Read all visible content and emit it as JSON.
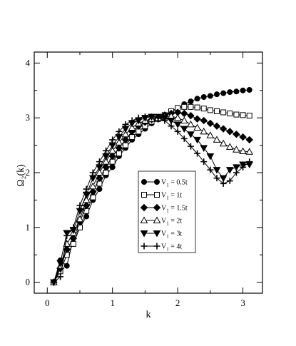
{
  "chart_data": {
    "type": "line",
    "xlabel": "k",
    "ylabel": "Ω₂(k)",
    "xlim": [
      -0.2,
      3.3
    ],
    "ylim": [
      -0.2,
      4.2
    ],
    "xticks": [
      0,
      1,
      2,
      3
    ],
    "yticks": [
      0,
      1,
      2,
      3,
      4
    ],
    "legend_position": "center-right",
    "series": [
      {
        "name_base": "V",
        "name_sub": "1",
        "name_value": " = 0.5t",
        "marker": "circle-filled",
        "x": [
          0.1,
          0.2,
          0.3,
          0.4,
          0.5,
          0.6,
          0.7,
          0.8,
          0.9,
          1.0,
          1.1,
          1.2,
          1.3,
          1.4,
          1.5,
          1.6,
          1.7,
          1.8,
          1.9,
          2.0,
          2.1,
          2.2,
          2.3,
          2.4,
          2.5,
          2.6,
          2.7,
          2.8,
          2.9,
          3.0,
          3.1
        ],
        "y": [
          0.0,
          0.4,
          0.3,
          0.8,
          1.0,
          1.2,
          1.5,
          1.7,
          1.95,
          2.1,
          2.3,
          2.45,
          2.6,
          2.7,
          2.8,
          2.9,
          2.97,
          3.03,
          3.1,
          3.17,
          3.25,
          3.3,
          3.35,
          3.38,
          3.4,
          3.43,
          3.45,
          3.47,
          3.48,
          3.5,
          3.51
        ]
      },
      {
        "name_base": "V",
        "name_sub": "1",
        "name_value": " = 1t",
        "marker": "square-open",
        "x": [
          0.1,
          0.2,
          0.3,
          0.4,
          0.5,
          0.6,
          0.7,
          0.8,
          0.9,
          1.0,
          1.1,
          1.2,
          1.3,
          1.4,
          1.5,
          1.6,
          1.7,
          1.8,
          1.9,
          2.0,
          2.1,
          2.2,
          2.3,
          2.4,
          2.5,
          2.6,
          2.7,
          2.8,
          2.9,
          3.0,
          3.1
        ],
        "y": [
          0.0,
          0.2,
          0.5,
          0.7,
          1.0,
          1.3,
          1.55,
          1.8,
          2.0,
          2.2,
          2.35,
          2.5,
          2.65,
          2.75,
          2.85,
          2.93,
          2.98,
          3.05,
          3.12,
          3.18,
          3.2,
          3.2,
          3.19,
          3.17,
          3.14,
          3.12,
          3.1,
          3.08,
          3.06,
          3.05,
          3.04
        ]
      },
      {
        "name_base": "V",
        "name_sub": "1",
        "name_value": " = 1.5t",
        "marker": "diamond-filled",
        "x": [
          0.1,
          0.2,
          0.3,
          0.4,
          0.5,
          0.6,
          0.7,
          0.8,
          0.9,
          1.0,
          1.1,
          1.2,
          1.3,
          1.4,
          1.5,
          1.6,
          1.7,
          1.8,
          1.9,
          2.0,
          2.1,
          2.2,
          2.3,
          2.4,
          2.5,
          2.6,
          2.7,
          2.8,
          2.9,
          3.0,
          3.1
        ],
        "y": [
          0.0,
          0.25,
          0.6,
          0.8,
          1.1,
          1.4,
          1.65,
          1.9,
          2.1,
          2.3,
          2.45,
          2.6,
          2.75,
          2.85,
          2.92,
          2.97,
          3.0,
          3.05,
          3.08,
          3.1,
          3.08,
          3.04,
          2.98,
          2.95,
          2.9,
          2.85,
          2.8,
          2.75,
          2.7,
          2.65,
          2.6
        ]
      },
      {
        "name_base": "V",
        "name_sub": "1",
        "name_value": " = 2t",
        "marker": "triangle-open",
        "x": [
          0.1,
          0.2,
          0.3,
          0.4,
          0.5,
          0.6,
          0.7,
          0.8,
          0.9,
          1.0,
          1.1,
          1.2,
          1.3,
          1.4,
          1.5,
          1.6,
          1.7,
          1.8,
          1.9,
          2.0,
          2.1,
          2.2,
          2.3,
          2.4,
          2.5,
          2.6,
          2.7,
          2.8,
          2.9,
          3.0,
          3.1
        ],
        "y": [
          0.0,
          0.3,
          0.7,
          0.9,
          1.15,
          1.5,
          1.75,
          2.0,
          2.2,
          2.4,
          2.55,
          2.7,
          2.82,
          2.9,
          2.95,
          2.98,
          3.0,
          3.02,
          3.03,
          3.0,
          2.95,
          2.88,
          2.82,
          2.75,
          2.68,
          2.6,
          2.53,
          2.47,
          2.42,
          2.39,
          2.38
        ]
      },
      {
        "name_base": "V",
        "name_sub": "1",
        "name_value": " = 3t",
        "marker": "triangle-down-filled",
        "x": [
          0.1,
          0.2,
          0.3,
          0.4,
          0.5,
          0.6,
          0.7,
          0.8,
          0.9,
          1.0,
          1.1,
          1.2,
          1.3,
          1.4,
          1.5,
          1.6,
          1.7,
          1.8,
          1.9,
          2.0,
          2.1,
          2.2,
          2.3,
          2.4,
          2.5,
          2.6,
          2.7,
          2.8,
          2.9,
          3.0,
          3.1
        ],
        "y": [
          0.0,
          0.35,
          0.9,
          0.95,
          1.3,
          1.6,
          1.9,
          2.1,
          2.3,
          2.5,
          2.65,
          2.8,
          2.9,
          2.95,
          3.0,
          3.02,
          3.02,
          3.0,
          2.95,
          2.88,
          2.8,
          2.7,
          2.6,
          2.45,
          2.3,
          2.05,
          1.9,
          2.05,
          2.1,
          2.15,
          2.15
        ]
      },
      {
        "name_base": "V",
        "name_sub": "1",
        "name_value": " = 4t",
        "marker": "plus",
        "x": [
          0.1,
          0.2,
          0.3,
          0.4,
          0.5,
          0.6,
          0.7,
          0.8,
          0.9,
          1.0,
          1.1,
          1.2,
          1.3,
          1.4,
          1.5,
          1.6,
          1.7,
          1.8,
          1.9,
          2.0,
          2.1,
          2.2,
          2.3,
          2.4,
          2.5,
          2.6,
          2.7,
          2.8,
          2.9,
          3.0,
          3.1
        ],
        "y": [
          0.0,
          0.1,
          0.85,
          1.0,
          1.4,
          1.7,
          2.0,
          2.2,
          2.4,
          2.6,
          2.75,
          2.88,
          2.95,
          3.0,
          3.02,
          3.02,
          3.0,
          2.95,
          2.85,
          2.75,
          2.62,
          2.48,
          2.35,
          2.2,
          2.05,
          1.9,
          1.8,
          1.85,
          2.0,
          2.1,
          2.2
        ]
      }
    ]
  }
}
